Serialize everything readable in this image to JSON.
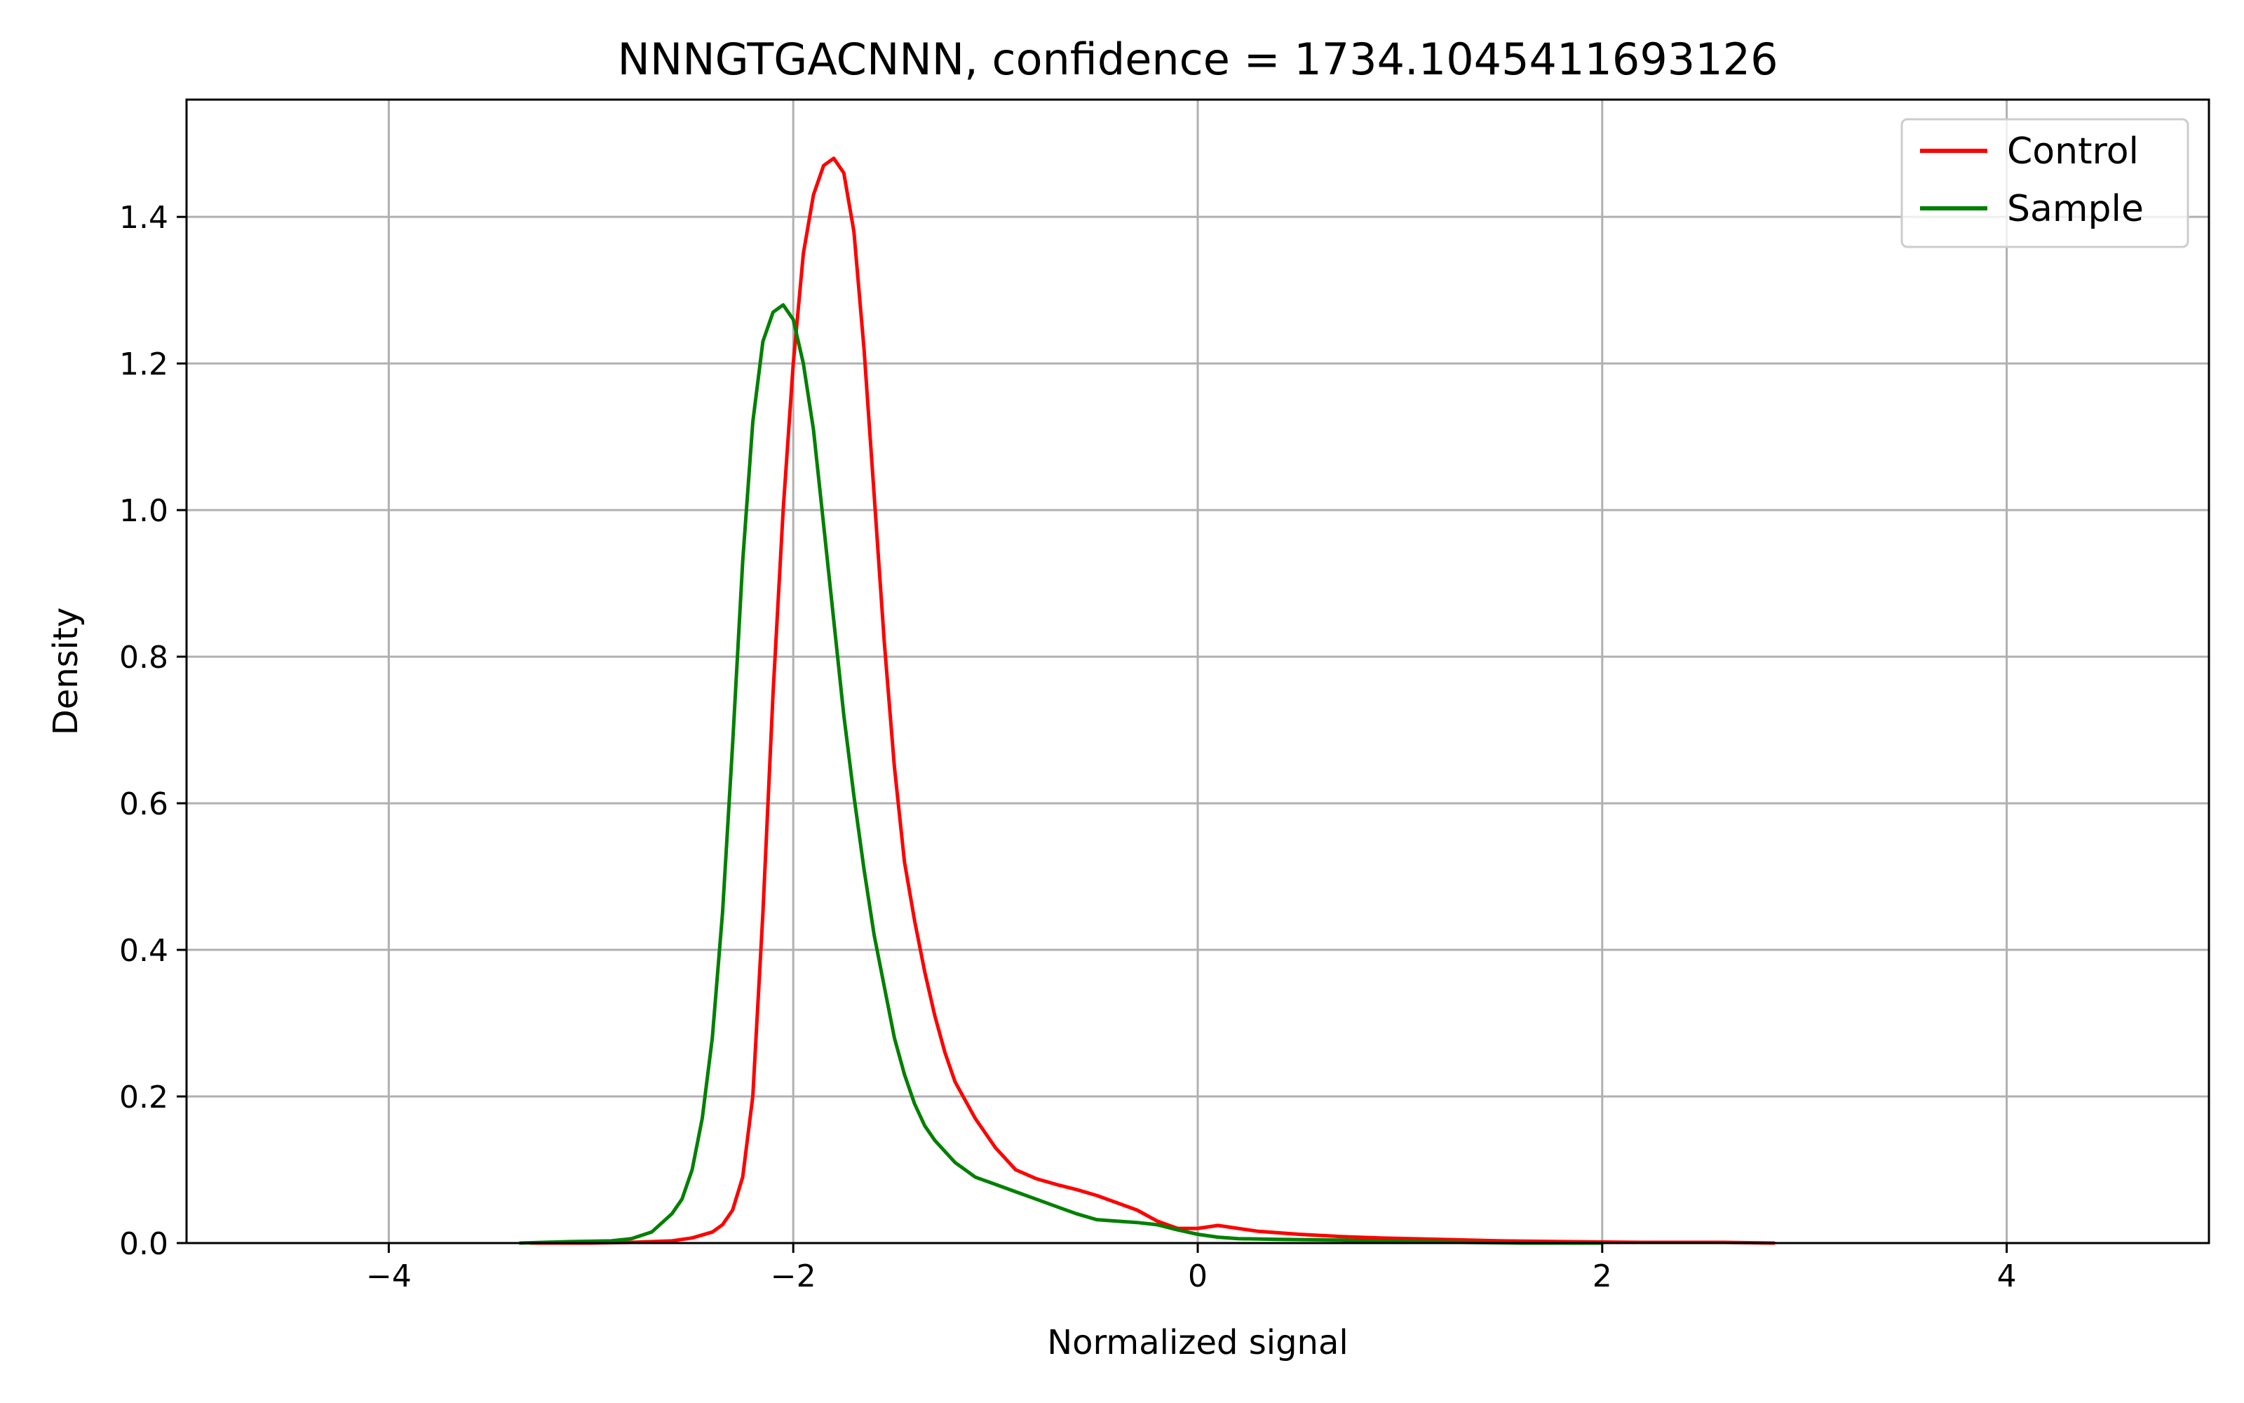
{
  "chart_data": {
    "type": "line",
    "title": "NNNGTGACNNN, confidence = 1734.1045411693126",
    "xlabel": "Normalized signal",
    "ylabel": "Density",
    "xlim": [
      -5,
      5
    ],
    "ylim": [
      0,
      1.56
    ],
    "xticks": [
      -4,
      -2,
      0,
      2,
      4
    ],
    "xtick_labels": [
      "−4",
      "−2",
      "0",
      "2",
      "4"
    ],
    "yticks": [
      0.0,
      0.2,
      0.4,
      0.6,
      0.8,
      1.0,
      1.2,
      1.4
    ],
    "ytick_labels": [
      "0.0",
      "0.2",
      "0.4",
      "0.6",
      "0.8",
      "1.0",
      "1.2",
      "1.4"
    ],
    "grid": true,
    "legend_position": "top-right",
    "series": [
      {
        "name": "Control",
        "color": "#ff0000",
        "x": [
          -3.3,
          -3.0,
          -2.8,
          -2.6,
          -2.5,
          -2.4,
          -2.35,
          -2.3,
          -2.25,
          -2.2,
          -2.15,
          -2.1,
          -2.05,
          -2.0,
          -1.95,
          -1.9,
          -1.85,
          -1.8,
          -1.75,
          -1.7,
          -1.65,
          -1.6,
          -1.55,
          -1.5,
          -1.45,
          -1.4,
          -1.35,
          -1.3,
          -1.25,
          -1.2,
          -1.1,
          -1.0,
          -0.9,
          -0.8,
          -0.7,
          -0.6,
          -0.5,
          -0.4,
          -0.3,
          -0.2,
          -0.1,
          0.0,
          0.1,
          0.15,
          0.2,
          0.3,
          0.5,
          0.7,
          0.9,
          1.2,
          1.5,
          1.8,
          2.2,
          2.6,
          2.85
        ],
        "y": [
          0.0,
          0.0,
          0.001,
          0.003,
          0.007,
          0.015,
          0.025,
          0.045,
          0.09,
          0.2,
          0.45,
          0.75,
          1.0,
          1.2,
          1.35,
          1.43,
          1.47,
          1.48,
          1.46,
          1.38,
          1.22,
          1.02,
          0.82,
          0.65,
          0.52,
          0.44,
          0.37,
          0.31,
          0.26,
          0.22,
          0.17,
          0.13,
          0.1,
          0.088,
          0.08,
          0.073,
          0.065,
          0.055,
          0.045,
          0.03,
          0.02,
          0.02,
          0.024,
          0.022,
          0.02,
          0.016,
          0.012,
          0.009,
          0.007,
          0.005,
          0.003,
          0.002,
          0.001,
          0.001,
          0.0
        ]
      },
      {
        "name": "Sample",
        "color": "#008000",
        "x": [
          -3.35,
          -3.1,
          -2.9,
          -2.8,
          -2.7,
          -2.6,
          -2.55,
          -2.5,
          -2.45,
          -2.4,
          -2.35,
          -2.3,
          -2.25,
          -2.2,
          -2.15,
          -2.1,
          -2.05,
          -2.0,
          -1.95,
          -1.9,
          -1.85,
          -1.8,
          -1.75,
          -1.7,
          -1.65,
          -1.6,
          -1.55,
          -1.5,
          -1.45,
          -1.4,
          -1.35,
          -1.3,
          -1.2,
          -1.1,
          -1.0,
          -0.9,
          -0.8,
          -0.7,
          -0.6,
          -0.5,
          -0.4,
          -0.3,
          -0.2,
          -0.1,
          0.0,
          0.1,
          0.2,
          0.4,
          0.7,
          1.0,
          1.3,
          1.6,
          2.0
        ],
        "y": [
          0.0,
          0.002,
          0.003,
          0.006,
          0.015,
          0.04,
          0.06,
          0.1,
          0.17,
          0.28,
          0.45,
          0.68,
          0.93,
          1.12,
          1.23,
          1.27,
          1.28,
          1.26,
          1.2,
          1.11,
          0.98,
          0.85,
          0.72,
          0.61,
          0.51,
          0.42,
          0.35,
          0.28,
          0.23,
          0.19,
          0.16,
          0.14,
          0.11,
          0.09,
          0.08,
          0.07,
          0.06,
          0.05,
          0.04,
          0.032,
          0.03,
          0.028,
          0.025,
          0.018,
          0.012,
          0.008,
          0.006,
          0.005,
          0.004,
          0.002,
          0.001,
          0.0,
          0.0
        ]
      }
    ]
  }
}
